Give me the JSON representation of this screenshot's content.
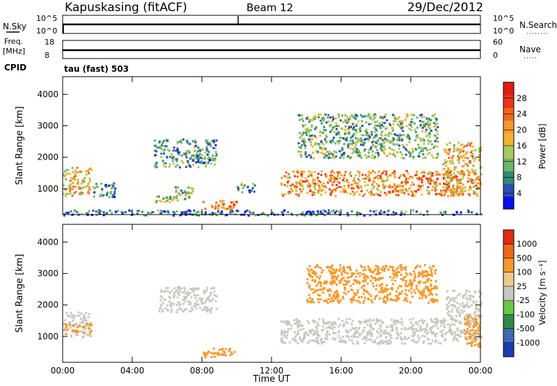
{
  "header": {
    "station": "Kapuskasing (fitACF)",
    "beam": "Beam 12",
    "date": "29/Dec/2012",
    "cpid_label": "CPID",
    "cpid_value": "tau (fast) 503"
  },
  "status_panels": {
    "nsky": {
      "label": "N.Sky",
      "ticks": [
        "10^5",
        "10^0"
      ]
    },
    "nsearch": {
      "label": "N.Search",
      "ticks": [
        "10^5",
        "10^0"
      ]
    },
    "freq": {
      "label_top": "Freq.",
      "label_bottom": "[MHz]",
      "ticks": [
        "18",
        "8"
      ]
    },
    "nave": {
      "label": "Nave",
      "ticks": [
        "60",
        "0"
      ]
    }
  },
  "chart_data": [
    {
      "type": "heatmap",
      "name": "power",
      "ylabel": "Slant Range [km]",
      "yticks": [
        1000,
        2000,
        3000,
        4000
      ],
      "ylim": [
        180,
        4560
      ],
      "xlim": [
        0,
        24
      ],
      "colorbar": {
        "label": "Power [dB]",
        "ticks": [
          "28",
          "24",
          "20",
          "16",
          "12",
          "8",
          "4"
        ],
        "colors": [
          "#0a10ee",
          "#2c4fb0",
          "#2f8b77",
          "#6fb36c",
          "#a6c95e",
          "#f2b530",
          "#f59a2c",
          "#ee6818",
          "#ea3320",
          "#e21a12"
        ]
      },
      "regions": [
        {
          "x": [
            0,
            1.6
          ],
          "y": [
            800,
            1700
          ],
          "level": 0.55
        },
        {
          "x": [
            1.6,
            3.0
          ],
          "y": [
            750,
            1200
          ],
          "level": 0.25
        },
        {
          "x": [
            5.3,
            6.6
          ],
          "y": [
            600,
            800
          ],
          "level": 0.45
        },
        {
          "x": [
            5.2,
            8.8
          ],
          "y": [
            1700,
            2600
          ],
          "level": 0.3
        },
        {
          "x": [
            6.3,
            7.6
          ],
          "y": [
            700,
            1100
          ],
          "level": 0.4
        },
        {
          "x": [
            8.0,
            10.0
          ],
          "y": [
            350,
            650
          ],
          "level": 0.7
        },
        {
          "x": [
            10.0,
            11.0
          ],
          "y": [
            900,
            1200
          ],
          "level": 0.3
        },
        {
          "x": [
            12.5,
            23.0
          ],
          "y": [
            800,
            1600
          ],
          "level": 0.65
        },
        {
          "x": [
            13.5,
            21.5
          ],
          "y": [
            2000,
            3400
          ],
          "level": 0.35
        },
        {
          "x": [
            21.8,
            24
          ],
          "y": [
            800,
            2500
          ],
          "level": 0.6
        },
        {
          "x": [
            0,
            24
          ],
          "y": [
            180,
            350
          ],
          "level": 0.2
        }
      ]
    },
    {
      "type": "heatmap",
      "name": "velocity",
      "ylabel": "Slant Range [km]",
      "xlabel": "Time UT",
      "yticks": [
        1000,
        2000,
        3000,
        4000
      ],
      "ylim": [
        180,
        4560
      ],
      "xlim": [
        0,
        24
      ],
      "xticks": [
        "00:00",
        "04:00",
        "08:00",
        "12:00",
        "16:00",
        "20:00",
        "00:00"
      ],
      "colorbar": {
        "label": "Velocity [m s⁻¹]",
        "ticks": [
          "1000",
          "500",
          "100",
          "25",
          "-25",
          "-100",
          "-500",
          "-1000"
        ],
        "colors": [
          "#1a3cb0",
          "#3f6ab0",
          "#2e8a4a",
          "#6cc44a",
          "#c8c8c0",
          "#f0c890",
          "#f59a2c",
          "#ea6a18",
          "#e22a12"
        ]
      },
      "regions": [
        {
          "x": [
            0,
            1.6
          ],
          "y": [
            1000,
            1800
          ],
          "color": "#c8c8c0"
        },
        {
          "x": [
            0,
            1.6
          ],
          "y": [
            1100,
            1450
          ],
          "color": "#f59a2c"
        },
        {
          "x": [
            5.5,
            8.8
          ],
          "y": [
            1800,
            2600
          ],
          "color": "#c8c8c0"
        },
        {
          "x": [
            8.0,
            10.0
          ],
          "y": [
            350,
            650
          ],
          "color": "#f59a2c"
        },
        {
          "x": [
            12.5,
            22.0
          ],
          "y": [
            800,
            1600
          ],
          "color": "#c8c8c0"
        },
        {
          "x": [
            14.0,
            21.5
          ],
          "y": [
            2100,
            3300
          ],
          "color": "#f59a2c"
        },
        {
          "x": [
            22.0,
            24.0
          ],
          "y": [
            900,
            2500
          ],
          "color": "#c8c8c0"
        },
        {
          "x": [
            23.0,
            24.0
          ],
          "y": [
            700,
            1700
          ],
          "color": "#f59a2c"
        }
      ]
    }
  ]
}
